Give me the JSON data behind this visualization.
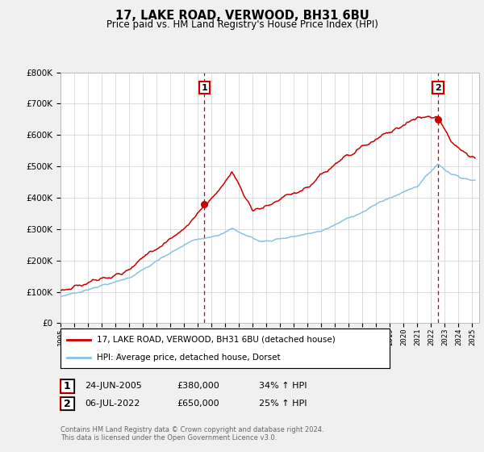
{
  "title": "17, LAKE ROAD, VERWOOD, BH31 6BU",
  "subtitle": "Price paid vs. HM Land Registry's House Price Index (HPI)",
  "ylim": [
    0,
    800000
  ],
  "xlim_start": 1995.0,
  "xlim_end": 2025.5,
  "hpi_color": "#88c4e0",
  "price_color": "#cc0000",
  "marker1_date": 2005.48,
  "marker1_value": 380000,
  "marker2_date": 2022.51,
  "marker2_value": 650000,
  "vline_color": "#cc0000",
  "legend_line1": "17, LAKE ROAD, VERWOOD, BH31 6BU (detached house)",
  "legend_line2": "HPI: Average price, detached house, Dorset",
  "table_row1": [
    "1",
    "24-JUN-2005",
    "£380,000",
    "34% ↑ HPI"
  ],
  "table_row2": [
    "2",
    "06-JUL-2022",
    "£650,000",
    "25% ↑ HPI"
  ],
  "footnote": "Contains HM Land Registry data © Crown copyright and database right 2024.\nThis data is licensed under the Open Government Licence v3.0.",
  "background_color": "#f0f0f0",
  "plot_background": "#ffffff",
  "grid_color": "#d0d0d0"
}
